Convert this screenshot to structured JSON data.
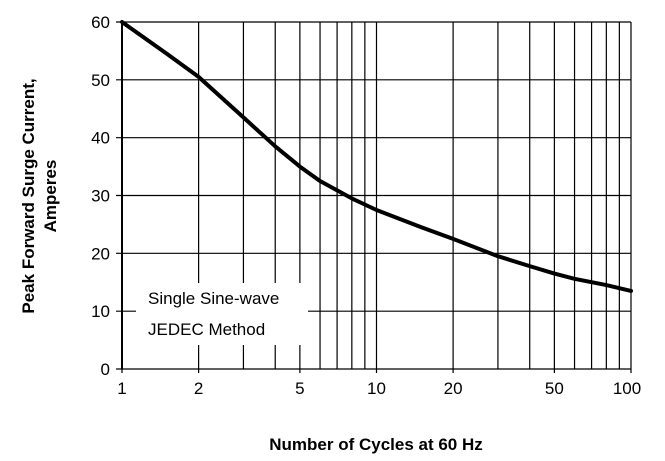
{
  "chart_data": {
    "type": "line",
    "xlabel": "Number of Cycles at 60 Hz",
    "ylabel": [
      "Peak Forward Surge Current,",
      "Amperes"
    ],
    "x_scale": "log",
    "xlim": [
      1,
      100
    ],
    "ylim": [
      0,
      60
    ],
    "x_ticks": [
      1,
      2,
      5,
      10,
      20,
      50,
      100
    ],
    "x_tick_labels": [
      "1",
      "2",
      "5",
      "10",
      "20",
      "50",
      "100"
    ],
    "y_ticks": [
      0,
      10,
      20,
      30,
      40,
      50,
      60
    ],
    "y_tick_labels": [
      "0",
      "10",
      "20",
      "30",
      "40",
      "50",
      "60"
    ],
    "grid": true,
    "annotation": [
      "Single Sine-wave",
      "JEDEC Method"
    ],
    "series": [
      {
        "color": "#000000",
        "x": [
          1,
          1.5,
          2,
          3,
          4,
          5,
          6,
          8,
          10,
          15,
          20,
          30,
          40,
          50,
          60,
          80,
          100
        ],
        "y": [
          60,
          54.5,
          50.5,
          43.5,
          38.5,
          35,
          32.5,
          29.5,
          27.5,
          24.5,
          22.5,
          19.5,
          17.8,
          16.5,
          15.6,
          14.5,
          13.5
        ]
      }
    ]
  }
}
